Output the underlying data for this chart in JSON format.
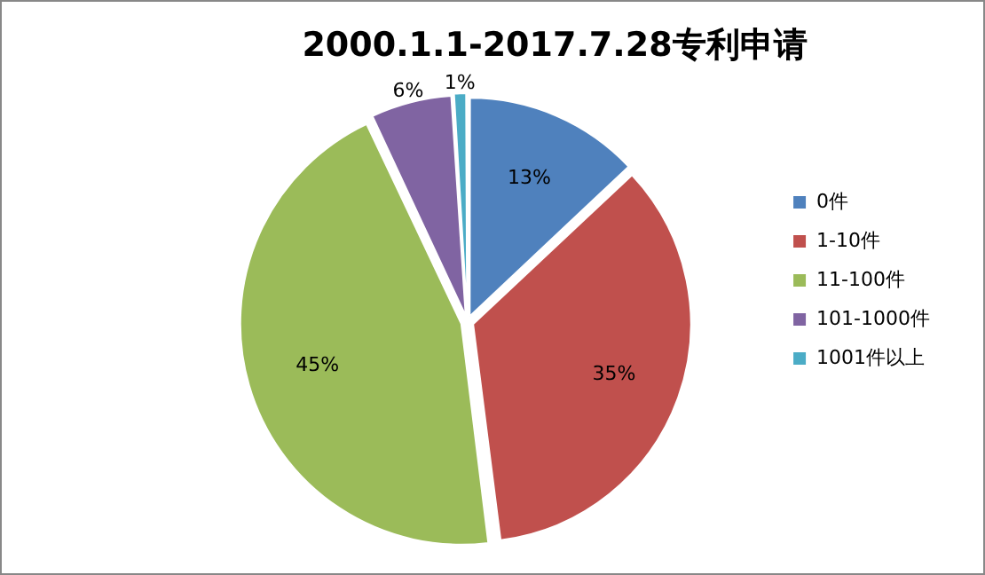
{
  "chart_data": {
    "type": "pie",
    "title": "2000.1.1-2017.7.28专利申请",
    "categories": [
      "0件",
      "1-10件",
      "11-100件",
      "101-1000件",
      "1001件以上"
    ],
    "values": [
      13,
      35,
      45,
      6,
      1
    ],
    "colors": [
      "#4f81bd",
      "#c0504d",
      "#9bbb59",
      "#8064a2",
      "#4bacc6"
    ],
    "value_labels": [
      "13%",
      "35%",
      "45%",
      "6%",
      "1%"
    ],
    "legend": "right"
  }
}
